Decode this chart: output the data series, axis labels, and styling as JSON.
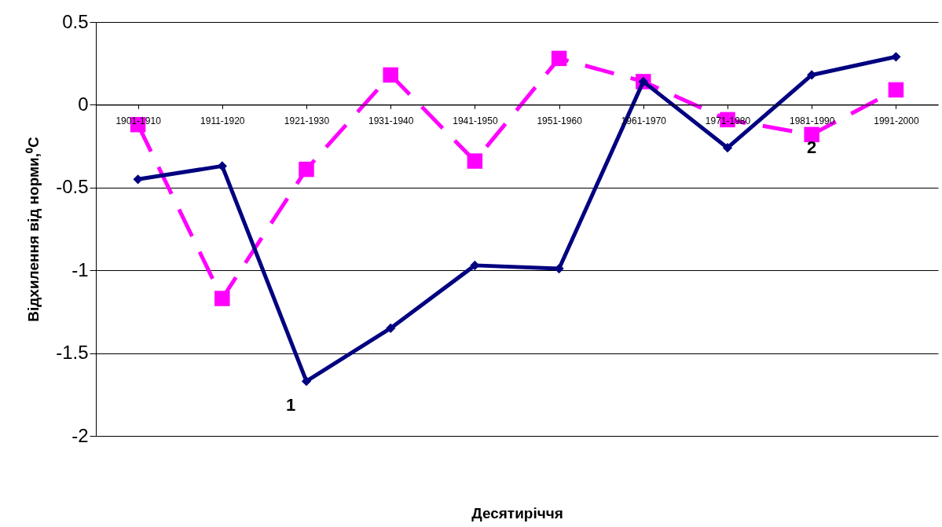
{
  "chart_data": {
    "type": "line",
    "xlabel": "Десятиріччя",
    "ylabel": "Відхилення від норми,⁰C",
    "categories": [
      "1901-1910",
      "1911-1920",
      "1921-1930",
      "1931-1940",
      "1941-1950",
      "1951-1960",
      "1961-1970",
      "1971-1980",
      "1981-1990",
      "1991-2000"
    ],
    "series": [
      {
        "name": "1",
        "color": "#000080",
        "marker": "diamond",
        "line_style": "solid",
        "values": [
          -0.45,
          -0.37,
          -1.67,
          -1.35,
          -0.97,
          -0.99,
          0.14,
          -0.26,
          0.18,
          0.29
        ]
      },
      {
        "name": "2",
        "color": "#ff00ff",
        "marker": "square",
        "line_style": "dashed",
        "values": [
          -0.12,
          -1.17,
          -0.39,
          0.18,
          -0.34,
          0.28,
          0.14,
          -0.09,
          -0.18,
          0.09
        ]
      }
    ],
    "ylim": [
      -2,
      0.5
    ],
    "yticks": [
      -2,
      -1.5,
      -1,
      -0.5,
      0,
      0.5
    ],
    "grid": "y"
  }
}
